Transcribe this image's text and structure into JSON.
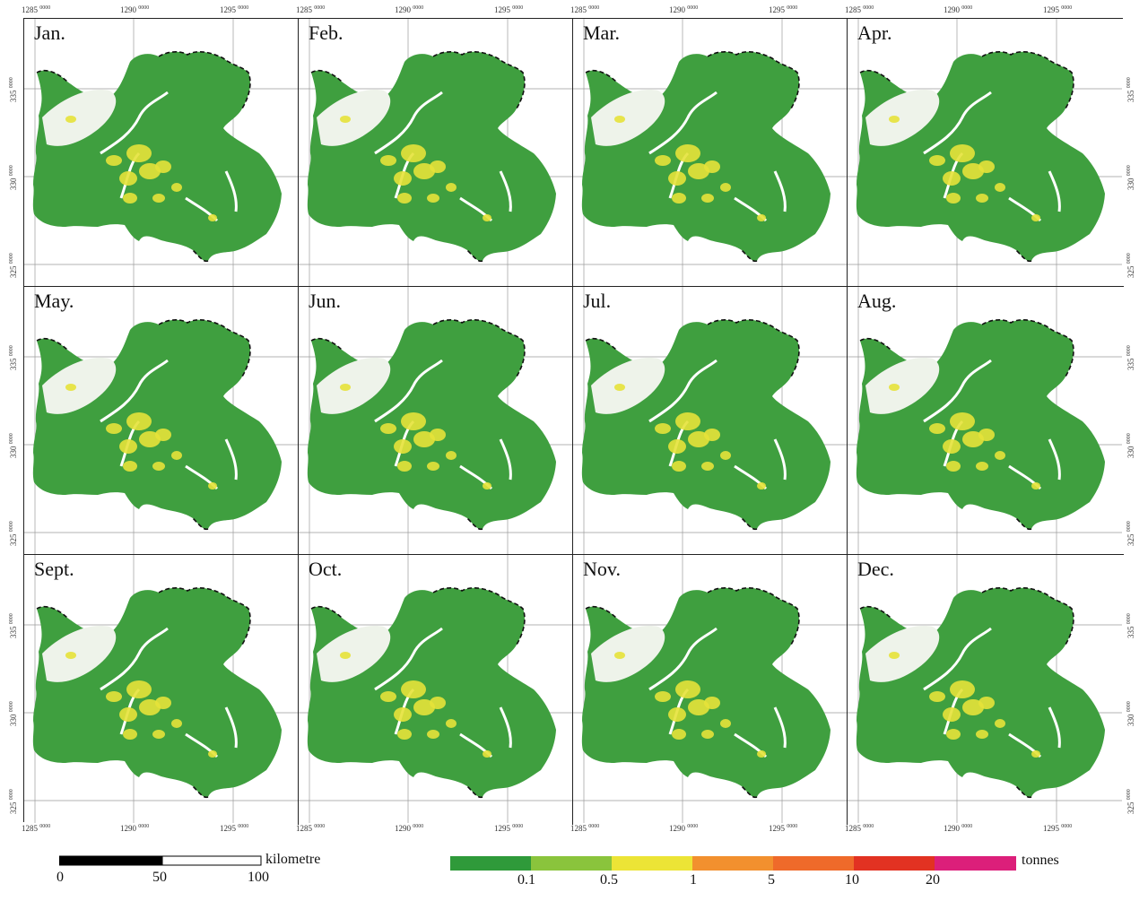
{
  "months": [
    "Jan.",
    "Feb.",
    "Mar.",
    "Apr.",
    "May.",
    "Jun.",
    "Jul.",
    "Aug.",
    "Sept.",
    "Oct.",
    "Nov.",
    "Dec."
  ],
  "ticks": {
    "x": [
      "1285",
      "1290",
      "1295"
    ],
    "y": [
      "335",
      "330",
      "325"
    ],
    "suffix": "0000"
  },
  "scale_bar": {
    "labels": [
      "0",
      "50",
      "100"
    ],
    "unit": "kilometre"
  },
  "legend": {
    "labels": [
      "0.1",
      "0.5",
      "1",
      "5",
      "10",
      "20"
    ],
    "unit": "tonnes",
    "colors": [
      "#2f9a3a",
      "#8ac43c",
      "#ece436",
      "#f2902e",
      "#ef6a2a",
      "#e23222",
      "#dc1f7a"
    ]
  },
  "colors": {
    "region_green": "#3f9f3f",
    "hotspot_yellow": "#e6e23a",
    "boundary": "#111111",
    "grid_line": "#9a9a9a"
  }
}
